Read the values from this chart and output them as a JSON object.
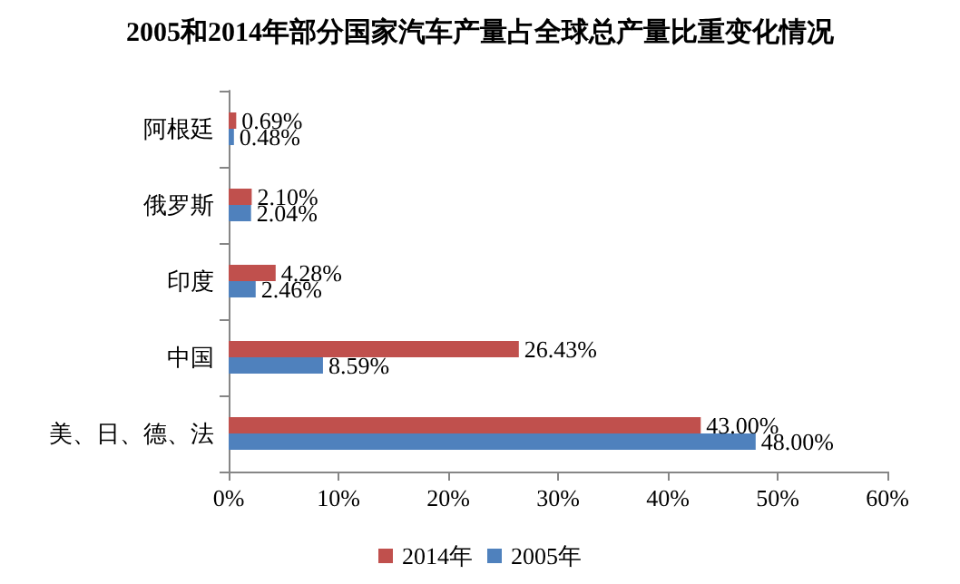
{
  "chart_data": {
    "type": "bar",
    "orientation": "horizontal",
    "title": "2005和2014年部分国家汽车产量占全球总产量比重变化情况",
    "categories": [
      "阿根廷",
      "俄罗斯",
      "印度",
      "中国",
      "美、日、德、法"
    ],
    "series": [
      {
        "name": "2014年",
        "color": "#c0504d",
        "values": [
          0.69,
          2.1,
          4.28,
          26.43,
          43.0
        ],
        "value_labels": [
          "0.69%",
          "2.10%",
          "4.28%",
          "26.43%",
          "43.00%"
        ]
      },
      {
        "name": "2005年",
        "color": "#4f81bd",
        "values": [
          0.48,
          2.04,
          2.46,
          8.59,
          48.0
        ],
        "value_labels": [
          "0.48%",
          "2.04%",
          "2.46%",
          "8.59%",
          "48.00%"
        ]
      }
    ],
    "xlim": [
      0,
      60
    ],
    "xticks": [
      {
        "value": 0,
        "label": "0%"
      },
      {
        "value": 10,
        "label": "10%"
      },
      {
        "value": 20,
        "label": "20%"
      },
      {
        "value": 30,
        "label": "30%"
      },
      {
        "value": 40,
        "label": "40%"
      },
      {
        "value": 50,
        "label": "50%"
      },
      {
        "value": 60,
        "label": "60%"
      }
    ],
    "grid": false,
    "legend": "bottom"
  }
}
